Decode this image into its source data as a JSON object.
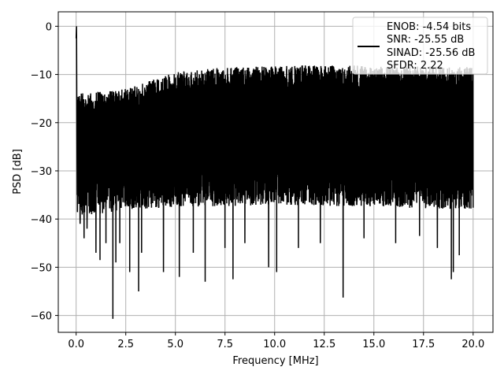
{
  "chart_data": {
    "type": "line",
    "xlabel": "Frequency [MHz]",
    "ylabel": "PSD [dB]",
    "xlim": [
      -0.9,
      21.0
    ],
    "ylim": [
      -63.5,
      3.0
    ],
    "xticks": [
      0.0,
      2.5,
      5.0,
      7.5,
      10.0,
      12.5,
      15.0,
      17.5,
      20.0
    ],
    "xtick_labels": [
      "0.0",
      "2.5",
      "5.0",
      "7.5",
      "10.0",
      "12.5",
      "15.0",
      "17.5",
      "20.0"
    ],
    "yticks": [
      0,
      -10,
      -20,
      -30,
      -40,
      -50,
      -60
    ],
    "ytick_labels": [
      "0",
      "−10",
      "−20",
      "−30",
      "−40",
      "−50",
      "−60"
    ],
    "grid": true,
    "legend_position": "top-right",
    "legend": [
      "ENOB: -4.54 bits",
      "SNR: -25.55 dB",
      "SINAD: -25.56 dB",
      "SFDR: 2.22"
    ],
    "series_color": "#000000",
    "grid_color": "#b0b0b0",
    "series": [
      {
        "x_start": 0.0,
        "x_end": 20.0,
        "points": 4000,
        "dc_peak": [
          [
            0.0,
            -2.5
          ],
          [
            0.02,
            0.0
          ],
          [
            0.05,
            -35.0
          ]
        ],
        "deep_dips": [
          [
            0.2,
            -41.0
          ],
          [
            0.4,
            -44.0
          ],
          [
            0.55,
            -42.0
          ],
          [
            1.0,
            -47.0
          ],
          [
            1.2,
            -48.5
          ],
          [
            1.5,
            -45.0
          ],
          [
            1.85,
            -60.7
          ],
          [
            2.0,
            -49.0
          ],
          [
            2.2,
            -45.0
          ],
          [
            2.7,
            -51.0
          ],
          [
            3.15,
            -55.0
          ],
          [
            3.3,
            -47.0
          ],
          [
            4.4,
            -51.0
          ],
          [
            5.2,
            -52.0
          ],
          [
            5.9,
            -47.0
          ],
          [
            6.5,
            -53.0
          ],
          [
            7.5,
            -46.0
          ],
          [
            7.9,
            -52.5
          ],
          [
            8.5,
            -45.0
          ],
          [
            9.7,
            -50.0
          ],
          [
            10.1,
            -51.0
          ],
          [
            11.2,
            -46.0
          ],
          [
            12.3,
            -45.0
          ],
          [
            13.45,
            -56.3
          ],
          [
            14.5,
            -44.0
          ],
          [
            16.1,
            -45.0
          ],
          [
            17.3,
            -43.5
          ],
          [
            18.2,
            -46.0
          ],
          [
            18.9,
            -52.5
          ],
          [
            19.0,
            -51.0
          ],
          [
            19.3,
            -47.5
          ]
        ],
        "envelope_top": [
          [
            0.0,
            -14.0
          ],
          [
            2.5,
            -13.0
          ],
          [
            5.0,
            -9.5
          ],
          [
            7.5,
            -8.5
          ],
          [
            12.5,
            -8.0
          ],
          [
            20.0,
            -8.5
          ]
        ],
        "envelope_bottom": [
          [
            0.0,
            -40.0
          ],
          [
            2.5,
            -38.0
          ],
          [
            10.0,
            -37.0
          ],
          [
            20.0,
            -38.0
          ]
        ]
      }
    ]
  }
}
